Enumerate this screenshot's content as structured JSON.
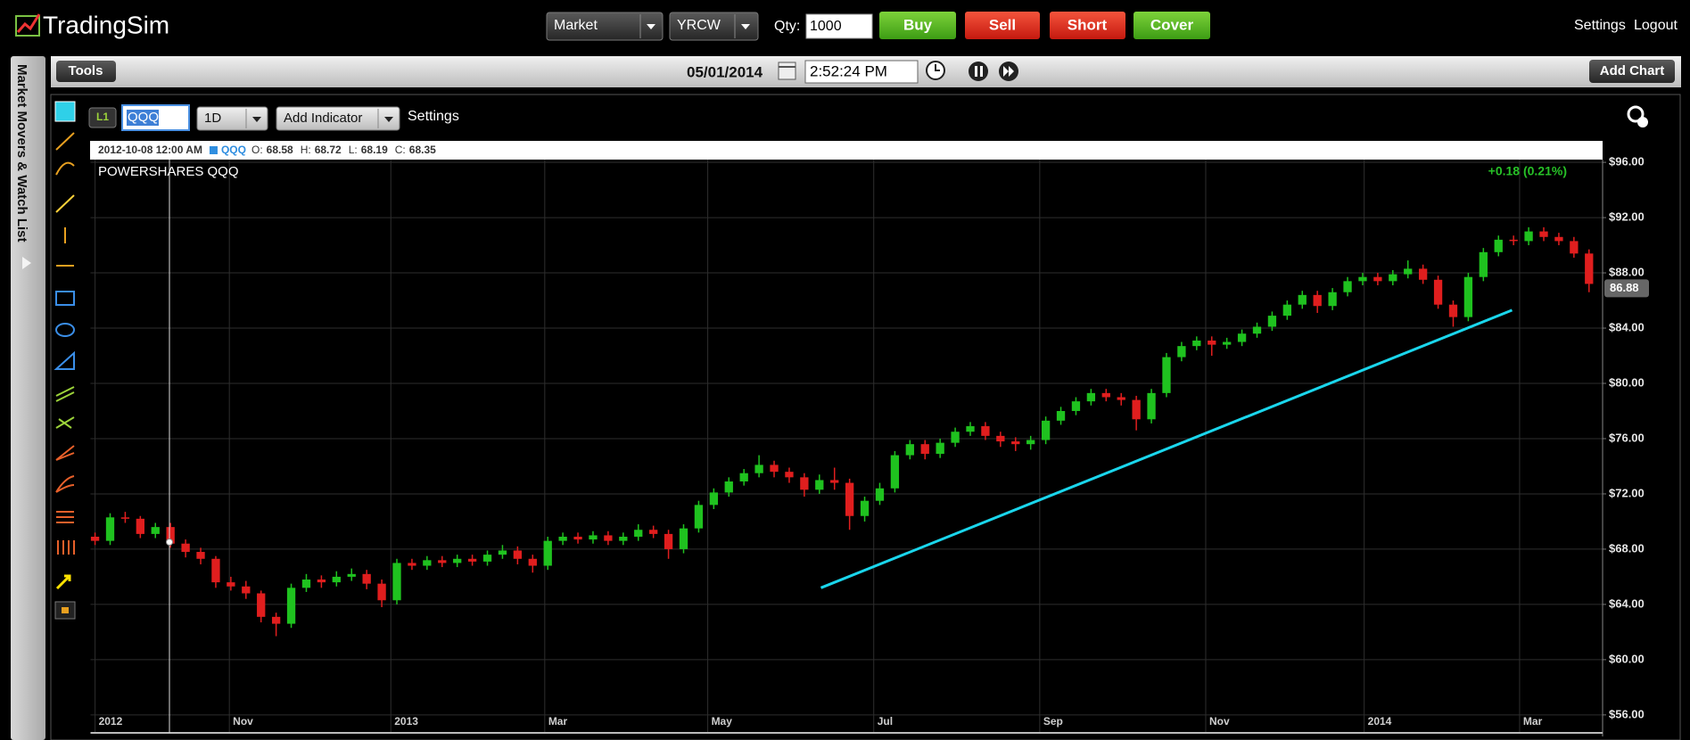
{
  "header": {
    "logo": "TradingSim",
    "order_type": "Market",
    "symbol": "YRCW",
    "qty_label": "Qty:",
    "qty": 1000,
    "buttons": [
      "Buy",
      "Sell",
      "Short",
      "Cover"
    ],
    "links": [
      "Settings",
      "Logout"
    ]
  },
  "sidebar": {
    "label": "Market Movers & Watch List"
  },
  "toolbar": {
    "tools": "Tools",
    "date": "05/01/2014",
    "time": "2:52:24 PM",
    "add_chart": "Add Chart"
  },
  "chart_controls": {
    "level": "L1",
    "symbol": "QQQ",
    "interval": "1D",
    "add_indicator": "Add Indicator",
    "settings": "Settings"
  },
  "chart_data": {
    "type": "candlestick",
    "title": "POWERSHARES QQQ",
    "change": "+0.18 (0.21%)",
    "info": {
      "date": "2012-10-08 12:00 AM",
      "symbol": "QQQ",
      "fields": [
        {
          "label": "O:",
          "value": 68.58
        },
        {
          "label": "H:",
          "value": 68.72
        },
        {
          "label": "L:",
          "value": 68.19
        },
        {
          "label": "C:",
          "value": 68.35
        }
      ]
    },
    "up_color": "#1fc21f",
    "down_color": "#e01e1e",
    "grid": true,
    "last_price": 86.88,
    "trendline": {
      "color": "#1ad6ec",
      "x": [
        48.1,
        93.9
      ],
      "y": [
        65.2,
        85.3
      ]
    },
    "xlim": [
      -0.3,
      99.9
    ],
    "xticks": [
      {
        "value": 0,
        "label": "2012"
      },
      {
        "value": 8.9,
        "label": "Nov"
      },
      {
        "value": 19.6,
        "label": "2013"
      },
      {
        "value": 29.8,
        "label": "Mar"
      },
      {
        "value": 40.6,
        "label": "May"
      },
      {
        "value": 51.6,
        "label": "Jul"
      },
      {
        "value": 62.6,
        "label": "Sep"
      },
      {
        "value": 73.6,
        "label": "Nov"
      },
      {
        "value": 84.1,
        "label": "2014"
      },
      {
        "value": 94.4,
        "label": "Mar"
      }
    ],
    "ylim": [
      54.7,
      96.2
    ],
    "yticks": [
      {
        "value": 56,
        "label": "$56.00"
      },
      {
        "value": 60,
        "label": "$60.00"
      },
      {
        "value": 64,
        "label": "$64.00"
      },
      {
        "value": 68,
        "label": "$68.00"
      },
      {
        "value": 72,
        "label": "$72.00"
      },
      {
        "value": 76,
        "label": "$76.00"
      },
      {
        "value": 80,
        "label": "$80.00"
      },
      {
        "value": 84,
        "label": "$84.00"
      },
      {
        "value": 88,
        "label": "$88.00"
      },
      {
        "value": 92,
        "label": "$92.00"
      },
      {
        "value": 96,
        "label": "$96.00"
      }
    ],
    "ohlc": [
      [
        68.9,
        69.2,
        68.3,
        68.6
      ],
      [
        68.6,
        70.6,
        68.3,
        70.3
      ],
      [
        70.3,
        70.7,
        69.9,
        70.2
      ],
      [
        70.2,
        70.4,
        68.8,
        69.1
      ],
      [
        69.1,
        69.9,
        68.8,
        69.6
      ],
      [
        69.6,
        69.9,
        68.1,
        68.4
      ],
      [
        68.4,
        68.7,
        67.4,
        67.8
      ],
      [
        67.8,
        68.1,
        66.9,
        67.3
      ],
      [
        67.3,
        67.5,
        65.2,
        65.6
      ],
      [
        65.6,
        66.0,
        65.0,
        65.3
      ],
      [
        65.3,
        65.7,
        64.4,
        64.8
      ],
      [
        64.8,
        65.0,
        62.7,
        63.1
      ],
      [
        63.1,
        63.4,
        61.7,
        62.6
      ],
      [
        62.6,
        65.5,
        62.3,
        65.2
      ],
      [
        65.2,
        66.2,
        64.9,
        65.8
      ],
      [
        65.8,
        66.1,
        65.2,
        65.6
      ],
      [
        65.6,
        66.4,
        65.3,
        66.0
      ],
      [
        66.0,
        66.6,
        65.7,
        66.2
      ],
      [
        66.2,
        66.5,
        65.1,
        65.5
      ],
      [
        65.5,
        65.8,
        63.8,
        64.3
      ],
      [
        64.3,
        67.3,
        64.0,
        67.0
      ],
      [
        67.0,
        67.3,
        66.5,
        66.8
      ],
      [
        66.8,
        67.5,
        66.5,
        67.2
      ],
      [
        67.2,
        67.5,
        66.7,
        67.0
      ],
      [
        67.0,
        67.6,
        66.7,
        67.3
      ],
      [
        67.3,
        67.6,
        66.8,
        67.1
      ],
      [
        67.1,
        67.9,
        66.8,
        67.6
      ],
      [
        67.6,
        68.3,
        67.3,
        67.9
      ],
      [
        67.9,
        68.2,
        66.9,
        67.3
      ],
      [
        67.3,
        67.6,
        66.3,
        66.8
      ],
      [
        66.8,
        68.9,
        66.5,
        68.6
      ],
      [
        68.6,
        69.2,
        68.3,
        68.9
      ],
      [
        68.9,
        69.2,
        68.4,
        68.7
      ],
      [
        68.7,
        69.3,
        68.4,
        69.0
      ],
      [
        69.0,
        69.3,
        68.3,
        68.6
      ],
      [
        68.6,
        69.2,
        68.3,
        68.9
      ],
      [
        68.9,
        69.8,
        68.6,
        69.4
      ],
      [
        69.4,
        69.7,
        68.8,
        69.1
      ],
      [
        69.1,
        69.4,
        67.3,
        68.0
      ],
      [
        68.0,
        69.8,
        67.7,
        69.5
      ],
      [
        69.5,
        71.5,
        69.2,
        71.2
      ],
      [
        71.2,
        72.4,
        70.9,
        72.1
      ],
      [
        72.1,
        73.2,
        71.8,
        72.9
      ],
      [
        72.9,
        73.8,
        72.6,
        73.5
      ],
      [
        73.5,
        74.8,
        73.2,
        74.1
      ],
      [
        74.1,
        74.4,
        73.2,
        73.6
      ],
      [
        73.6,
        73.9,
        72.8,
        73.2
      ],
      [
        73.2,
        73.5,
        71.8,
        72.3
      ],
      [
        72.3,
        73.4,
        72.0,
        73.0
      ],
      [
        73.0,
        73.9,
        72.3,
        72.8
      ],
      [
        72.8,
        73.1,
        69.4,
        70.4
      ],
      [
        70.4,
        71.8,
        70.0,
        71.5
      ],
      [
        71.5,
        72.8,
        71.2,
        72.4
      ],
      [
        72.4,
        75.1,
        72.1,
        74.8
      ],
      [
        74.8,
        75.9,
        74.5,
        75.6
      ],
      [
        75.6,
        75.9,
        74.5,
        74.9
      ],
      [
        74.9,
        76.0,
        74.6,
        75.7
      ],
      [
        75.7,
        76.8,
        75.4,
        76.5
      ],
      [
        76.5,
        77.2,
        76.2,
        76.9
      ],
      [
        76.9,
        77.2,
        75.9,
        76.2
      ],
      [
        76.2,
        76.5,
        75.4,
        75.8
      ],
      [
        75.8,
        76.1,
        75.1,
        75.6
      ],
      [
        75.6,
        76.2,
        75.2,
        75.9
      ],
      [
        75.9,
        77.6,
        75.6,
        77.3
      ],
      [
        77.3,
        78.3,
        77.0,
        78.0
      ],
      [
        78.0,
        79.0,
        77.7,
        78.7
      ],
      [
        78.7,
        79.6,
        78.4,
        79.3
      ],
      [
        79.3,
        79.6,
        78.7,
        79.0
      ],
      [
        79.0,
        79.3,
        78.4,
        78.8
      ],
      [
        78.8,
        79.1,
        76.6,
        77.4
      ],
      [
        77.4,
        79.6,
        77.1,
        79.3
      ],
      [
        79.3,
        82.2,
        79.0,
        81.9
      ],
      [
        81.9,
        83.0,
        81.6,
        82.7
      ],
      [
        82.7,
        83.4,
        82.4,
        83.1
      ],
      [
        83.1,
        83.4,
        82.0,
        82.8
      ],
      [
        82.8,
        83.3,
        82.5,
        83.0
      ],
      [
        83.0,
        83.9,
        82.7,
        83.6
      ],
      [
        83.6,
        84.4,
        83.3,
        84.1
      ],
      [
        84.1,
        85.2,
        83.8,
        84.9
      ],
      [
        84.9,
        86.0,
        84.6,
        85.7
      ],
      [
        85.7,
        86.7,
        85.4,
        86.4
      ],
      [
        86.4,
        86.7,
        85.1,
        85.6
      ],
      [
        85.6,
        86.9,
        85.3,
        86.6
      ],
      [
        86.6,
        87.7,
        86.3,
        87.4
      ],
      [
        87.4,
        88.0,
        87.1,
        87.7
      ],
      [
        87.7,
        88.0,
        87.1,
        87.4
      ],
      [
        87.4,
        88.2,
        87.1,
        87.9
      ],
      [
        87.9,
        88.9,
        87.6,
        88.3
      ],
      [
        88.3,
        88.6,
        87.2,
        87.5
      ],
      [
        87.5,
        87.8,
        85.4,
        85.7
      ],
      [
        85.7,
        86.0,
        84.1,
        84.8
      ],
      [
        84.8,
        88.0,
        84.5,
        87.7
      ],
      [
        87.7,
        89.8,
        87.4,
        89.5
      ],
      [
        89.5,
        90.7,
        89.2,
        90.4
      ],
      [
        90.4,
        90.7,
        90.0,
        90.3
      ],
      [
        90.3,
        91.3,
        90.0,
        91.0
      ],
      [
        91.0,
        91.3,
        90.3,
        90.6
      ],
      [
        90.6,
        90.9,
        90.0,
        90.3
      ],
      [
        90.3,
        90.6,
        89.1,
        89.4
      ],
      [
        89.4,
        89.7,
        86.6,
        87.2
      ]
    ]
  }
}
